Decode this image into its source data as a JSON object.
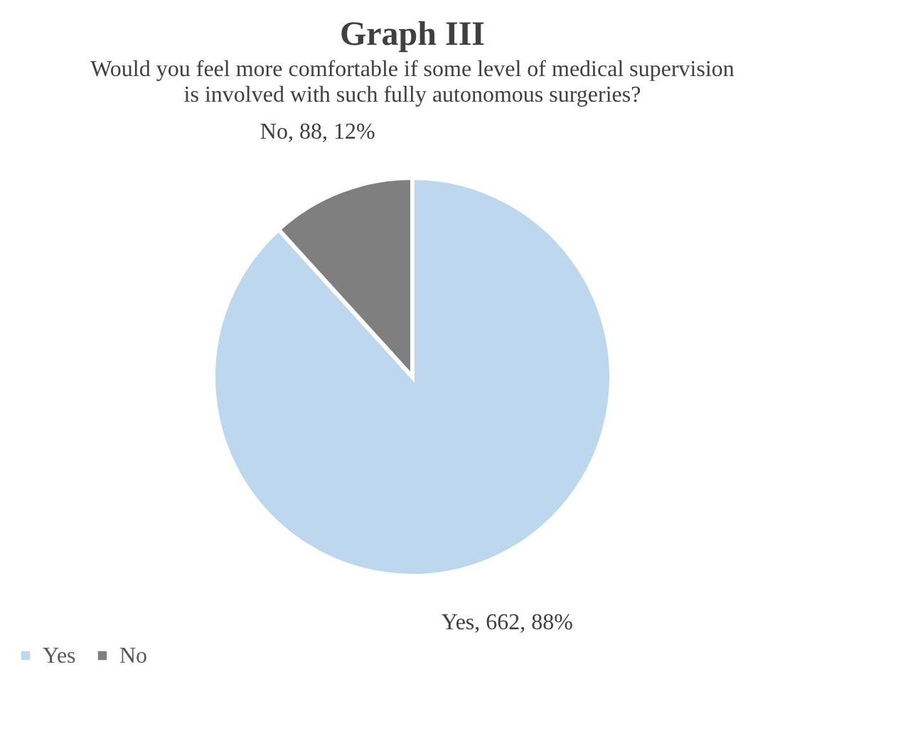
{
  "chart_data": {
    "type": "pie",
    "title": "Graph III",
    "subtitle": "Would you feel more comfortable if some level of medical supervision is involved with such fully autonomous surgeries?",
    "categories": [
      "Yes",
      "No"
    ],
    "values": [
      662,
      88
    ],
    "colors": [
      "#bdd7ee",
      "#7f7f7f"
    ],
    "value_labels": [
      "Yes, 662, 88%",
      "No, 88, 12%"
    ],
    "legend": "bottom"
  }
}
